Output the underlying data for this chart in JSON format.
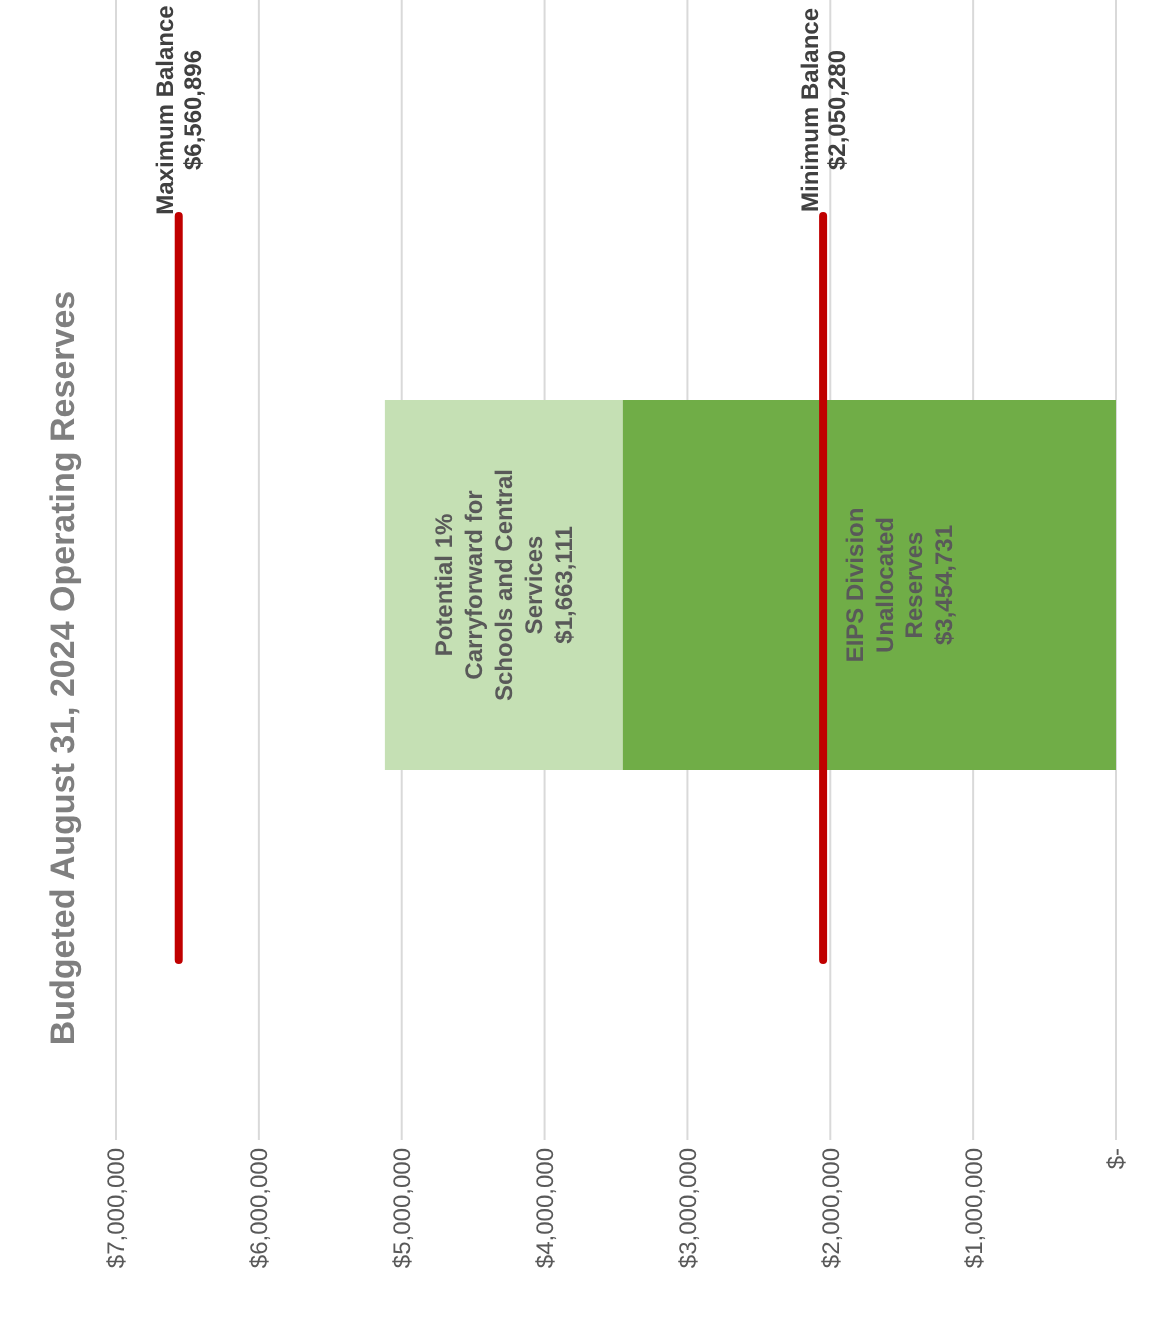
{
  "chart_data": {
    "type": "bar",
    "orientation": "horizontal",
    "title": "Budgeted August 31, 2024 Operating Reserves",
    "categories": [
      null
    ],
    "stacked": true,
    "xlim": [
      7000000,
      0
    ],
    "xticks": [
      {
        "value": 7000000,
        "label": "$7,000,000"
      },
      {
        "value": 6000000,
        "label": "$6,000,000"
      },
      {
        "value": 5000000,
        "label": "$5,000,000"
      },
      {
        "value": 4000000,
        "label": "$4,000,000"
      },
      {
        "value": 3000000,
        "label": "$3,000,000"
      },
      {
        "value": 2000000,
        "label": "$2,000,000"
      },
      {
        "value": 1000000,
        "label": "$1,000,000"
      },
      {
        "value": 0,
        "label": "$-"
      }
    ],
    "grid": "x",
    "series": [
      {
        "name": "EIPS Division Unallocated Reserves",
        "color": "#70ad47",
        "values": [
          3454731
        ],
        "value_labels": [
          "$3,454,731"
        ]
      },
      {
        "name": "Potential 1% Carryforward for Schools and Central Services",
        "color": "#c5e0b4",
        "values": [
          1663111
        ],
        "value_labels": [
          "$1,663,111"
        ]
      }
    ],
    "ref_lines": [
      {
        "axis": "x",
        "value": 6560896,
        "label": "Maximum Balance $6,560,896",
        "color": "#c00000"
      },
      {
        "axis": "x",
        "value": 2050280,
        "label": "Minimum Balance $2,050,280",
        "color": "#c00000"
      }
    ]
  }
}
